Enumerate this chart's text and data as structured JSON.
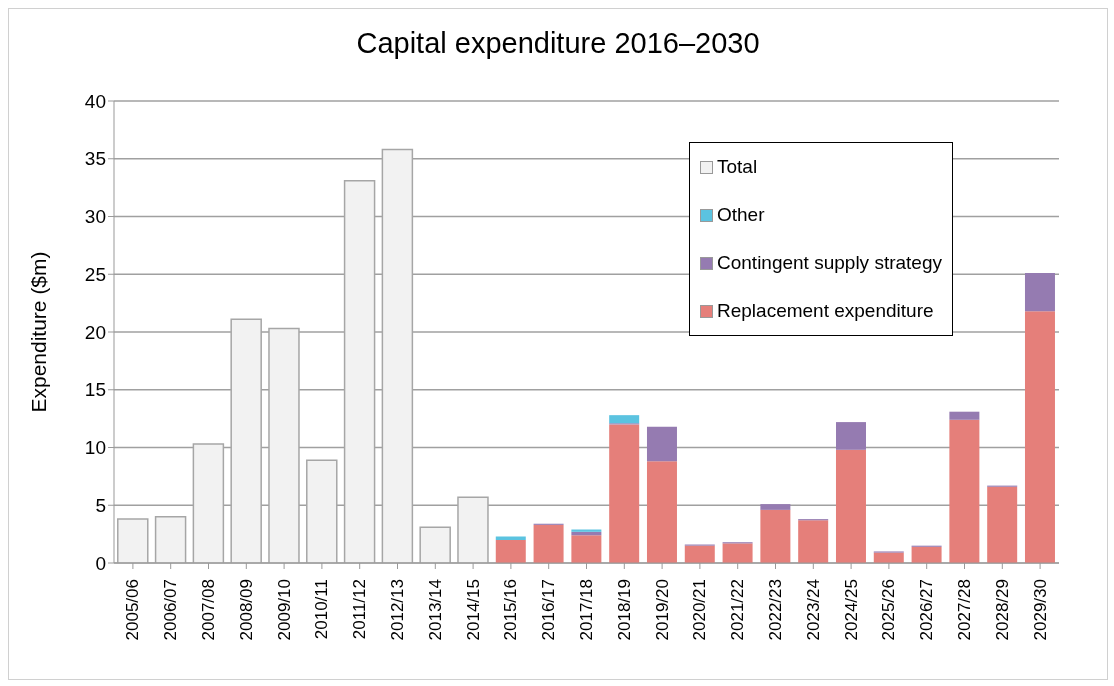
{
  "chart_data": {
    "type": "bar",
    "title": "Capital expenditure 2016–2030",
    "ylabel": "Expenditure ($m)",
    "categories": [
      "2005/06",
      "2006/07",
      "2007/08",
      "2008/09",
      "2009/10",
      "2010/11",
      "2011/12",
      "2012/13",
      "2013/14",
      "2014/15",
      "2015/16",
      "2016/17",
      "2017/18",
      "2018/19",
      "2019/20",
      "2020/21",
      "2021/22",
      "2022/23",
      "2023/24",
      "2024/25",
      "2025/26",
      "2026/27",
      "2027/28",
      "2028/29",
      "2029/30"
    ],
    "stacked": true,
    "series": [
      {
        "name": "Total",
        "color": "#f2f2f2",
        "values": [
          3.8,
          4.0,
          10.3,
          21.1,
          20.3,
          8.9,
          33.1,
          35.8,
          3.1,
          5.7,
          null,
          null,
          null,
          null,
          null,
          null,
          null,
          null,
          null,
          null,
          null,
          null,
          null,
          null,
          null
        ]
      },
      {
        "name": "Replacement expenditure",
        "color": "#e57f7a",
        "values": [
          null,
          null,
          null,
          null,
          null,
          null,
          null,
          null,
          null,
          null,
          2.0,
          3.3,
          2.4,
          12.0,
          8.8,
          1.5,
          1.7,
          4.6,
          3.7,
          9.8,
          0.9,
          1.4,
          12.4,
          6.6,
          21.8
        ]
      },
      {
        "name": "Contingent supply strategy",
        "color": "#957bb1",
        "values": [
          null,
          null,
          null,
          null,
          null,
          null,
          null,
          null,
          null,
          null,
          0,
          0.1,
          0.3,
          0.1,
          3.0,
          0.1,
          0.1,
          0.5,
          0.1,
          2.4,
          0.1,
          0.1,
          0.7,
          0.1,
          3.3
        ]
      },
      {
        "name": "Other",
        "color": "#5bc3e0",
        "values": [
          null,
          null,
          null,
          null,
          null,
          null,
          null,
          null,
          null,
          null,
          0.3,
          0,
          0.2,
          0.7,
          0,
          0,
          0,
          0,
          0,
          0,
          0,
          0,
          0,
          0,
          0
        ]
      }
    ],
    "ylim": [
      0,
      40
    ],
    "yticks": [
      0,
      5,
      10,
      15,
      20,
      25,
      30,
      35,
      40
    ],
    "grid": "y",
    "legend": "top right"
  }
}
